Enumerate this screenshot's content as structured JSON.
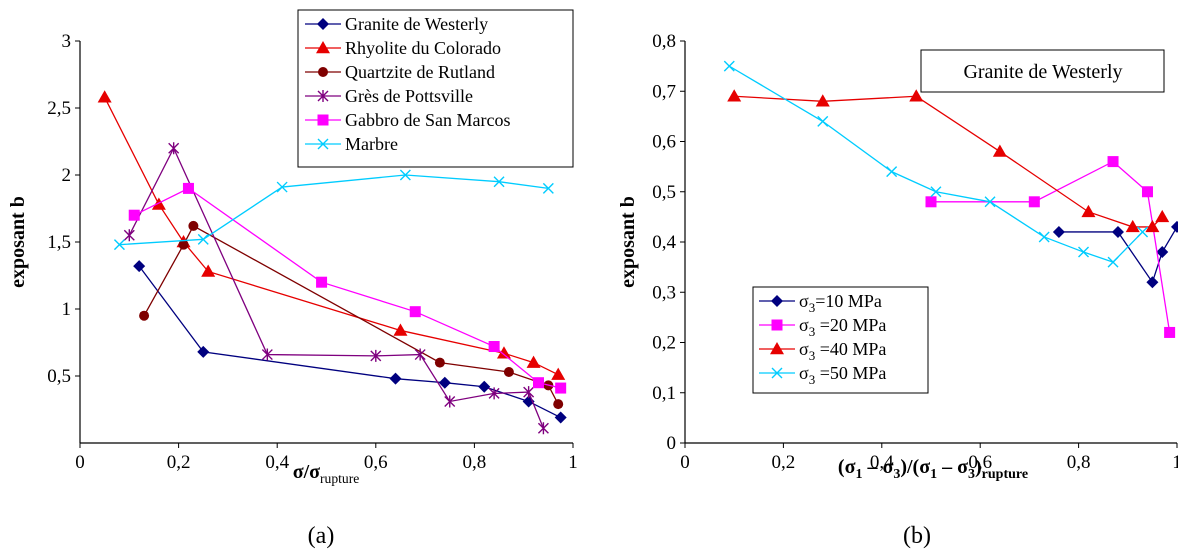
{
  "chart_data": [
    {
      "type": "line",
      "panel_label": "(a)",
      "xlabel": "σ/σ",
      "xlabel_sub": "rupture",
      "ylabel": "exposant b",
      "xlim": [
        0,
        1
      ],
      "ylim": [
        0,
        3
      ],
      "xticks": [
        "0",
        "0,2",
        "0,4",
        "0,6",
        "0,8",
        "1"
      ],
      "yticks": [
        "0,5",
        "1",
        "1,5",
        "2",
        "2,5",
        "3"
      ],
      "grid": false,
      "legend_position": "top-right",
      "series": [
        {
          "name": "Granite de Westerly",
          "color": "#00007f",
          "marker": "diamond",
          "x": [
            0.12,
            0.25,
            0.64,
            0.74,
            0.82,
            0.91,
            0.975
          ],
          "y": [
            1.32,
            0.68,
            0.48,
            0.45,
            0.42,
            0.31,
            0.19
          ]
        },
        {
          "name": "Rhyolite du Colorado",
          "color": "#e60000",
          "marker": "triangle",
          "x": [
            0.05,
            0.16,
            0.21,
            0.26,
            0.65,
            0.86,
            0.92,
            0.97
          ],
          "y": [
            2.58,
            1.78,
            1.5,
            1.28,
            0.84,
            0.67,
            0.6,
            0.51
          ]
        },
        {
          "name": "Quartzite de Rutland",
          "color": "#7f0000",
          "marker": "circle",
          "x": [
            0.13,
            0.21,
            0.23,
            0.73,
            0.87,
            0.95,
            0.97
          ],
          "y": [
            0.95,
            1.48,
            1.62,
            0.6,
            0.53,
            0.43,
            0.29
          ]
        },
        {
          "name": "Grès de Pottsville",
          "color": "#7f007f",
          "marker": "star",
          "x": [
            0.1,
            0.19,
            0.38,
            0.6,
            0.69,
            0.75,
            0.84,
            0.91,
            0.94
          ],
          "y": [
            1.55,
            2.2,
            0.66,
            0.65,
            0.66,
            0.31,
            0.37,
            0.38,
            0.11
          ]
        },
        {
          "name": "Gabbro de San Marcos",
          "color": "#ff00ff",
          "marker": "square",
          "x": [
            0.11,
            0.22,
            0.49,
            0.68,
            0.84,
            0.93,
            0.975
          ],
          "y": [
            1.7,
            1.9,
            1.2,
            0.98,
            0.72,
            0.45,
            0.41
          ]
        },
        {
          "name": "Marbre",
          "color": "#00ccff",
          "marker": "x",
          "x": [
            0.08,
            0.25,
            0.41,
            0.66,
            0.85,
            0.95
          ],
          "y": [
            1.48,
            1.52,
            1.91,
            2.0,
            1.95,
            1.9
          ]
        }
      ]
    },
    {
      "type": "line",
      "panel_label": "(b)",
      "title": "Granite de Westerly",
      "xlabel": "(σ1 – σ3)/(σ1 – σ3)rupture",
      "ylabel": "exposant b",
      "xlim": [
        0,
        1
      ],
      "ylim": [
        0,
        0.8
      ],
      "xticks": [
        "0",
        "0,2",
        "0,4",
        "0,6",
        "0,8",
        "1"
      ],
      "yticks": [
        "0",
        "0,1",
        "0,2",
        "0,3",
        "0,4",
        "0,5",
        "0,6",
        "0,7",
        "0,8"
      ],
      "grid": false,
      "legend_position": "bottom-left",
      "series": [
        {
          "name": "σ3=10 MPa",
          "color": "#00007f",
          "marker": "diamond",
          "x": [
            0.76,
            0.88,
            0.95,
            0.97,
            1.0
          ],
          "y": [
            0.42,
            0.42,
            0.32,
            0.38,
            0.43
          ]
        },
        {
          "name": "σ3 =20 MPa",
          "color": "#ff00ff",
          "marker": "square",
          "x": [
            0.5,
            0.71,
            0.87,
            0.94,
            0.985
          ],
          "y": [
            0.48,
            0.48,
            0.56,
            0.5,
            0.22
          ]
        },
        {
          "name": "σ3 =40 MPa",
          "color": "#e60000",
          "marker": "triangle",
          "x": [
            0.1,
            0.28,
            0.47,
            0.64,
            0.82,
            0.91,
            0.95,
            0.97
          ],
          "y": [
            0.69,
            0.68,
            0.69,
            0.58,
            0.46,
            0.43,
            0.43,
            0.45
          ]
        },
        {
          "name": "σ3 =50 MPa",
          "color": "#00ccff",
          "marker": "x",
          "x": [
            0.09,
            0.28,
            0.42,
            0.51,
            0.62,
            0.73,
            0.81,
            0.87,
            0.93
          ],
          "y": [
            0.75,
            0.64,
            0.54,
            0.5,
            0.48,
            0.41,
            0.38,
            0.36,
            0.42
          ]
        }
      ]
    }
  ]
}
